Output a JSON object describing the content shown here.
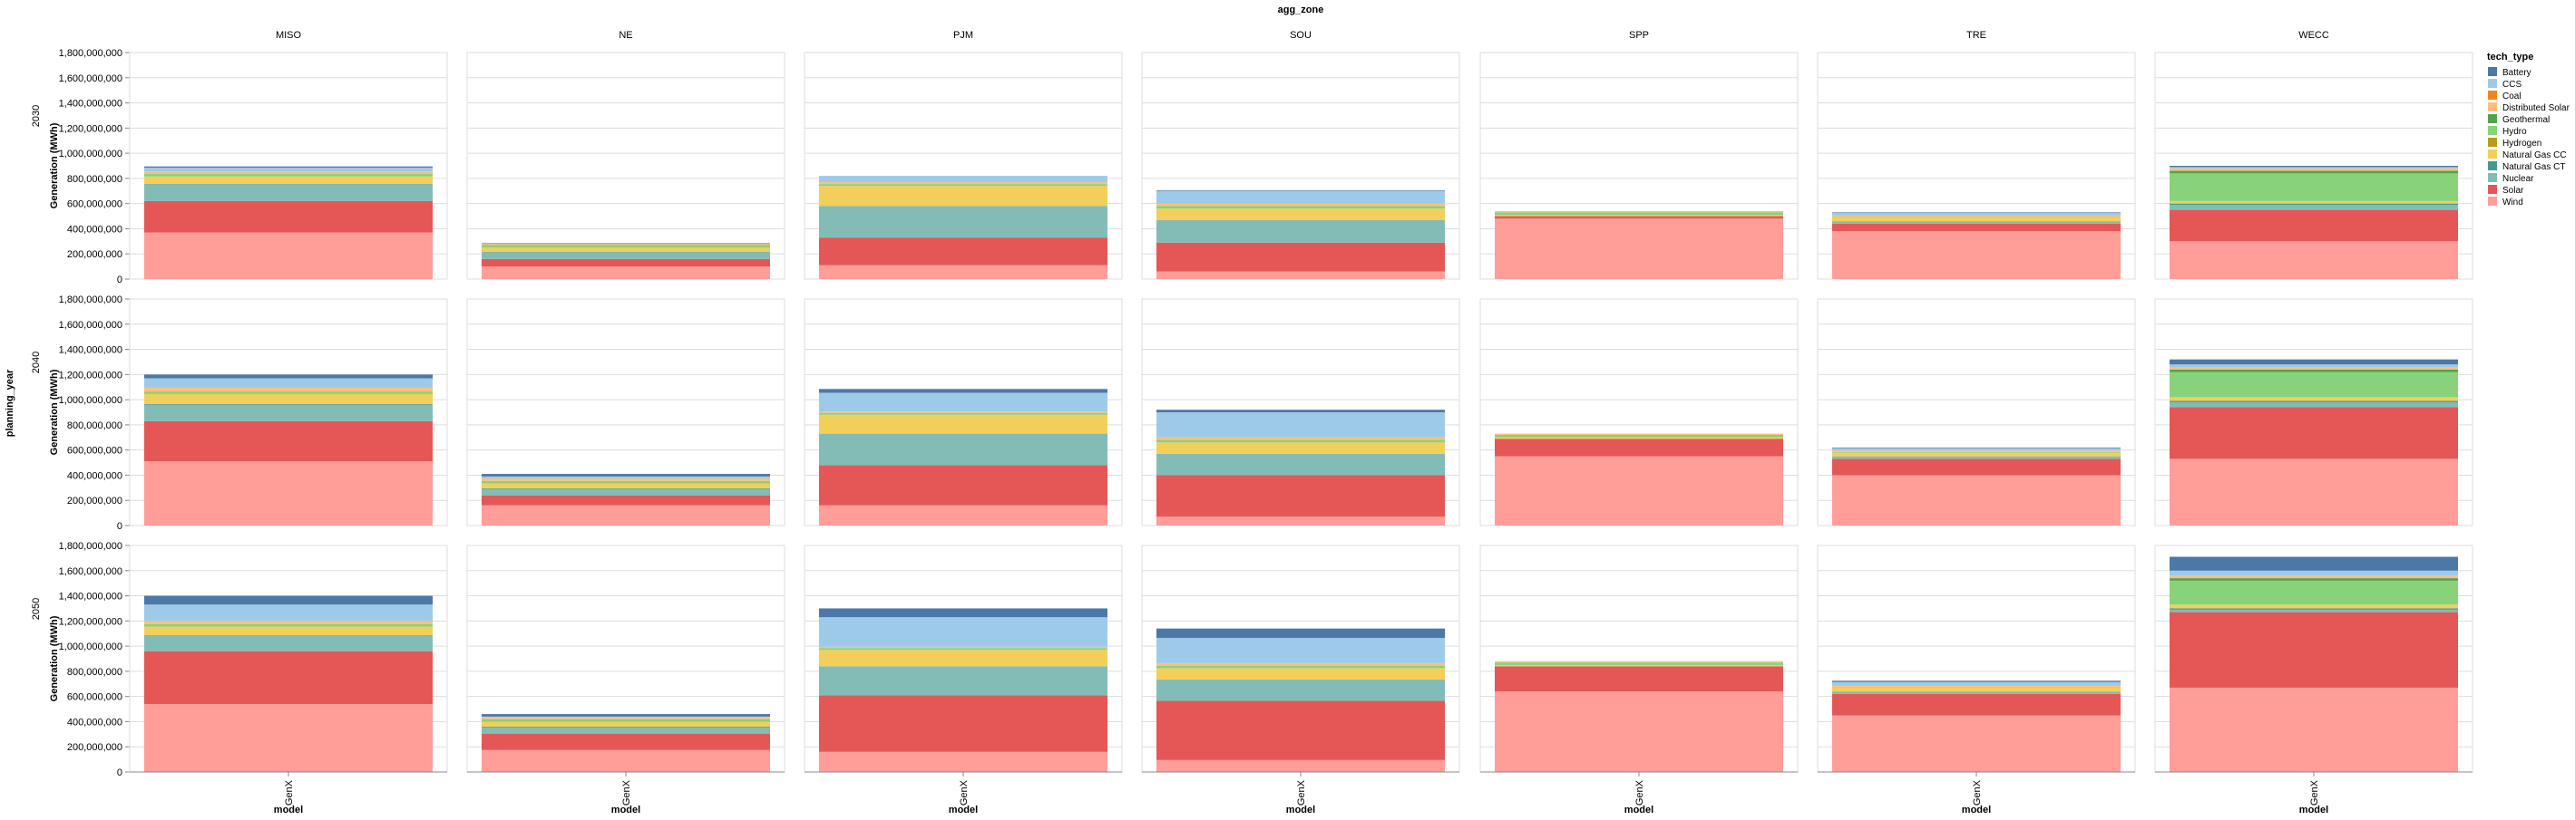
{
  "chart_data": {
    "type": "bar",
    "stacked": true,
    "column_facet_title": "agg_zone",
    "row_facet_title": "planning_year",
    "x_title": "model",
    "y_title": "Generation (MWh)",
    "legend_title": "tech_type",
    "legend_position": "right",
    "grid": true,
    "ylim": [
      0,
      1800000000
    ],
    "y_ticks": [
      "0",
      "200,000,000",
      "400,000,000",
      "600,000,000",
      "800,000,000",
      "1,000,000,000",
      "1,200,000,000",
      "1,400,000,000",
      "1,600,000,000",
      "1,800,000,000"
    ],
    "zones": [
      "MISO",
      "NE",
      "PJM",
      "SOU",
      "SPP",
      "TRE",
      "WECC"
    ],
    "years": [
      "2030",
      "2040",
      "2050"
    ],
    "categories": [
      "GenX"
    ],
    "tech_types": [
      {
        "name": "Battery",
        "color": "#4c78a8"
      },
      {
        "name": "CCS",
        "color": "#9ecae9"
      },
      {
        "name": "Coal",
        "color": "#f58518"
      },
      {
        "name": "Distributed Solar",
        "color": "#ffbf79"
      },
      {
        "name": "Geothermal",
        "color": "#54a24b"
      },
      {
        "name": "Hydro",
        "color": "#88d27a"
      },
      {
        "name": "Hydrogen",
        "color": "#b79a20"
      },
      {
        "name": "Natural Gas CC",
        "color": "#f2cf5b"
      },
      {
        "name": "Natural Gas CT",
        "color": "#439894"
      },
      {
        "name": "Nuclear",
        "color": "#83bcb6"
      },
      {
        "name": "Solar",
        "color": "#e45756"
      },
      {
        "name": "Wind",
        "color": "#ff9d98"
      }
    ],
    "stack_order": [
      "Wind",
      "Solar",
      "Nuclear",
      "Natural Gas CT",
      "Natural Gas CC",
      "Hydrogen",
      "Hydro",
      "Geothermal",
      "Distributed Solar",
      "Coal",
      "CCS",
      "Battery"
    ],
    "values": {
      "2030": {
        "MISO": {
          "Wind": 370000000,
          "Solar": 250000000,
          "Nuclear": 130000000,
          "Natural Gas CT": 5000000,
          "Natural Gas CC": 60000000,
          "Hydrogen": 0,
          "Hydro": 20000000,
          "Geothermal": 0,
          "Distributed Solar": 20000000,
          "Coal": 0,
          "CCS": 30000000,
          "Battery": 10000000
        },
        "NE": {
          "Wind": 100000000,
          "Solar": 60000000,
          "Nuclear": 50000000,
          "Natural Gas CT": 5000000,
          "Natural Gas CC": 35000000,
          "Hydrogen": 0,
          "Hydro": 20000000,
          "Geothermal": 0,
          "Distributed Solar": 10000000,
          "Coal": 0,
          "CCS": 0,
          "Battery": 5000000
        },
        "PJM": {
          "Wind": 110000000,
          "Solar": 220000000,
          "Nuclear": 250000000,
          "Natural Gas CT": 0,
          "Natural Gas CC": 160000000,
          "Hydrogen": 0,
          "Hydro": 15000000,
          "Geothermal": 0,
          "Distributed Solar": 15000000,
          "Coal": 0,
          "CCS": 50000000,
          "Battery": 0
        },
        "SOU": {
          "Wind": 60000000,
          "Solar": 230000000,
          "Nuclear": 180000000,
          "Natural Gas CT": 0,
          "Natural Gas CC": 90000000,
          "Hydrogen": 0,
          "Hydro": 20000000,
          "Geothermal": 0,
          "Distributed Solar": 20000000,
          "Coal": 0,
          "CCS": 100000000,
          "Battery": 5000000
        },
        "SPP": {
          "Wind": 480000000,
          "Solar": 20000000,
          "Nuclear": 0,
          "Natural Gas CT": 0,
          "Natural Gas CC": 10000000,
          "Hydrogen": 0,
          "Hydro": 20000000,
          "Geothermal": 0,
          "Distributed Solar": 10000000,
          "Coal": 0,
          "CCS": 0,
          "Battery": 0
        },
        "TRE": {
          "Wind": 380000000,
          "Solar": 60000000,
          "Nuclear": 20000000,
          "Natural Gas CT": 0,
          "Natural Gas CC": 30000000,
          "Hydrogen": 0,
          "Hydro": 5000000,
          "Geothermal": 0,
          "Distributed Solar": 10000000,
          "Coal": 0,
          "CCS": 20000000,
          "Battery": 5000000
        },
        "WECC": {
          "Wind": 300000000,
          "Solar": 250000000,
          "Nuclear": 40000000,
          "Natural Gas CT": 10000000,
          "Natural Gas CC": 20000000,
          "Hydrogen": 0,
          "Hydro": 220000000,
          "Geothermal": 20000000,
          "Distributed Solar": 20000000,
          "Coal": 0,
          "CCS": 10000000,
          "Battery": 10000000
        }
      },
      "2040": {
        "MISO": {
          "Wind": 510000000,
          "Solar": 320000000,
          "Nuclear": 130000000,
          "Natural Gas CT": 5000000,
          "Natural Gas CC": 80000000,
          "Hydrogen": 0,
          "Hydro": 20000000,
          "Geothermal": 0,
          "Distributed Solar": 30000000,
          "Coal": 0,
          "CCS": 75000000,
          "Battery": 30000000
        },
        "NE": {
          "Wind": 160000000,
          "Solar": 80000000,
          "Nuclear": 50000000,
          "Natural Gas CT": 5000000,
          "Natural Gas CC": 40000000,
          "Hydrogen": 0,
          "Hydro": 20000000,
          "Geothermal": 0,
          "Distributed Solar": 20000000,
          "Coal": 0,
          "CCS": 15000000,
          "Battery": 20000000
        },
        "PJM": {
          "Wind": 160000000,
          "Solar": 320000000,
          "Nuclear": 250000000,
          "Natural Gas CT": 0,
          "Natural Gas CC": 150000000,
          "Hydrogen": 0,
          "Hydro": 15000000,
          "Geothermal": 0,
          "Distributed Solar": 10000000,
          "Coal": 0,
          "CCS": 150000000,
          "Battery": 30000000
        },
        "SOU": {
          "Wind": 70000000,
          "Solar": 330000000,
          "Nuclear": 170000000,
          "Natural Gas CT": 0,
          "Natural Gas CC": 90000000,
          "Hydrogen": 0,
          "Hydro": 20000000,
          "Geothermal": 0,
          "Distributed Solar": 20000000,
          "Coal": 0,
          "CCS": 200000000,
          "Battery": 20000000
        },
        "SPP": {
          "Wind": 550000000,
          "Solar": 140000000,
          "Nuclear": 0,
          "Natural Gas CT": 0,
          "Natural Gas CC": 10000000,
          "Hydrogen": 0,
          "Hydro": 20000000,
          "Geothermal": 0,
          "Distributed Solar": 10000000,
          "Coal": 0,
          "CCS": 0,
          "Battery": 0
        },
        "TRE": {
          "Wind": 400000000,
          "Solar": 130000000,
          "Nuclear": 20000000,
          "Natural Gas CT": 0,
          "Natural Gas CC": 30000000,
          "Hydrogen": 0,
          "Hydro": 5000000,
          "Geothermal": 0,
          "Distributed Solar": 10000000,
          "Coal": 0,
          "CCS": 20000000,
          "Battery": 5000000
        },
        "WECC": {
          "Wind": 530000000,
          "Solar": 410000000,
          "Nuclear": 40000000,
          "Natural Gas CT": 10000000,
          "Natural Gas CC": 30000000,
          "Hydrogen": 0,
          "Hydro": 200000000,
          "Geothermal": 20000000,
          "Distributed Solar": 20000000,
          "Coal": 0,
          "CCS": 20000000,
          "Battery": 40000000
        }
      },
      "2050": {
        "MISO": {
          "Wind": 540000000,
          "Solar": 420000000,
          "Nuclear": 120000000,
          "Natural Gas CT": 5000000,
          "Natural Gas CC": 70000000,
          "Hydrogen": 0,
          "Hydro": 20000000,
          "Geothermal": 0,
          "Distributed Solar": 25000000,
          "Coal": 0,
          "CCS": 130000000,
          "Battery": 70000000
        },
        "NE": {
          "Wind": 175000000,
          "Solar": 130000000,
          "Nuclear": 50000000,
          "Natural Gas CT": 5000000,
          "Natural Gas CC": 40000000,
          "Hydrogen": 0,
          "Hydro": 20000000,
          "Geothermal": 0,
          "Distributed Solar": 15000000,
          "Coal": 0,
          "CCS": 5000000,
          "Battery": 20000000
        },
        "PJM": {
          "Wind": 160000000,
          "Solar": 450000000,
          "Nuclear": 230000000,
          "Natural Gas CT": 0,
          "Natural Gas CC": 130000000,
          "Hydrogen": 0,
          "Hydro": 15000000,
          "Geothermal": 0,
          "Distributed Solar": 10000000,
          "Coal": 0,
          "CCS": 235000000,
          "Battery": 70000000
        },
        "SOU": {
          "Wind": 95000000,
          "Solar": 470000000,
          "Nuclear": 170000000,
          "Natural Gas CT": 0,
          "Natural Gas CC": 90000000,
          "Hydrogen": 0,
          "Hydro": 20000000,
          "Geothermal": 0,
          "Distributed Solar": 20000000,
          "Coal": 0,
          "CCS": 200000000,
          "Battery": 75000000
        },
        "SPP": {
          "Wind": 640000000,
          "Solar": 200000000,
          "Nuclear": 0,
          "Natural Gas CT": 0,
          "Natural Gas CC": 10000000,
          "Hydrogen": 0,
          "Hydro": 20000000,
          "Geothermal": 0,
          "Distributed Solar": 10000000,
          "Coal": 0,
          "CCS": 0,
          "Battery": 0
        },
        "TRE": {
          "Wind": 450000000,
          "Solar": 170000000,
          "Nuclear": 20000000,
          "Natural Gas CT": 0,
          "Natural Gas CC": 30000000,
          "Hydrogen": 0,
          "Hydro": 5000000,
          "Geothermal": 0,
          "Distributed Solar": 10000000,
          "Coal": 0,
          "CCS": 30000000,
          "Battery": 10000000
        },
        "WECC": {
          "Wind": 670000000,
          "Solar": 600000000,
          "Nuclear": 20000000,
          "Natural Gas CT": 10000000,
          "Natural Gas CC": 30000000,
          "Hydrogen": 0,
          "Hydro": 190000000,
          "Geothermal": 20000000,
          "Distributed Solar": 20000000,
          "Coal": 0,
          "CCS": 40000000,
          "Battery": 110000000
        }
      }
    }
  }
}
